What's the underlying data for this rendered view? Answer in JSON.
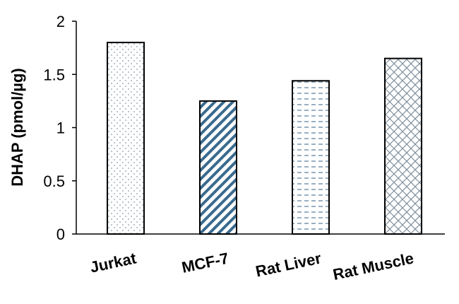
{
  "chart_data": {
    "type": "bar",
    "categories": [
      "Jurkat",
      "MCF-7",
      "Rat Liver",
      "Rat Muscle"
    ],
    "values": [
      1.8,
      1.25,
      1.44,
      1.65
    ],
    "ylabel": "DHAP (pmol/µg)",
    "xlabel": "",
    "ylim": [
      0,
      2
    ],
    "yticks": [
      "0",
      "0.5",
      "1",
      "1.5",
      "2"
    ],
    "grid": false,
    "legend": "none",
    "bar_patterns": [
      "dots",
      "diagonal-stripes",
      "horizontal-dashes",
      "crosshatch-bricks"
    ],
    "colors": {
      "bar_border": "#000000",
      "dots": "#8a9aa6",
      "stripes": "#3a6a8e",
      "dashes": "#6f8fa8",
      "crosshatch": "#7f8f9c"
    }
  }
}
